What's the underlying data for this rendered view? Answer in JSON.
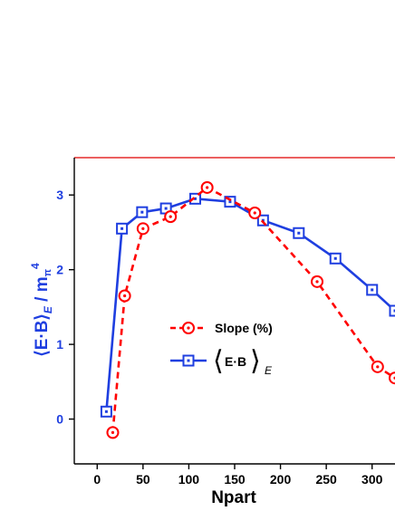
{
  "chart_data": {
    "type": "line",
    "xlabel": "Npart",
    "ylabel": "⟨E·B⟩E / mπ4",
    "xlim": [
      -25,
      325
    ],
    "ylim": [
      -0.6,
      3.5
    ],
    "x_ticks": [
      0,
      50,
      100,
      150,
      200,
      250,
      300
    ],
    "y_ticks": [
      0,
      1,
      2,
      3
    ],
    "legend_position": "center",
    "grid": false,
    "series": [
      {
        "name": "Slope (%)",
        "color": "#ff0000",
        "marker": "circle-dot",
        "line_style": "dashed",
        "x": [
          17,
          30,
          50,
          80,
          120,
          172,
          240,
          306,
          325
        ],
        "y": [
          -0.18,
          1.65,
          2.55,
          2.71,
          3.1,
          2.76,
          1.84,
          0.7,
          0.55
        ]
      },
      {
        "name": "⟨E·B⟩E",
        "color": "#1f3fe0",
        "marker": "square-dot",
        "line_style": "solid",
        "x": [
          10,
          27,
          49,
          75,
          107,
          145,
          181,
          220,
          260,
          300,
          325
        ],
        "y": [
          0.1,
          2.55,
          2.77,
          2.82,
          2.95,
          2.91,
          2.66,
          2.49,
          2.15,
          1.73,
          1.45
        ]
      }
    ]
  },
  "legend": {
    "slope_label": "Slope (%)",
    "eb_label": "E·B",
    "eb_subscript": "E"
  }
}
